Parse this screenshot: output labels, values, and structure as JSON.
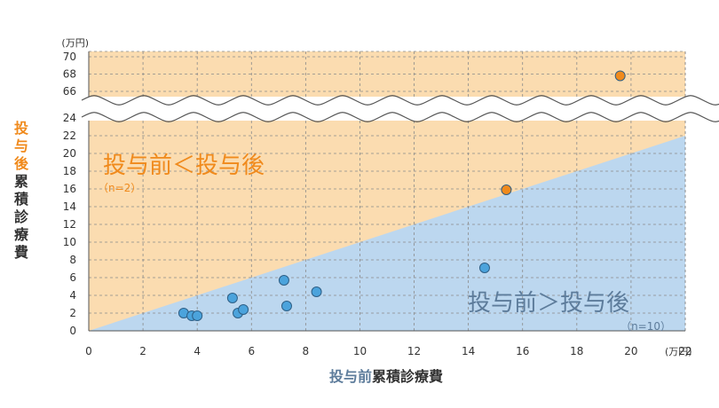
{
  "chart_data": {
    "type": "scatter",
    "x_unit": "(万円)",
    "y_unit": "(万円)",
    "x_ticks": [
      0,
      2,
      4,
      6,
      8,
      10,
      12,
      14,
      16,
      18,
      20,
      22
    ],
    "x_tick_labels": [
      "0",
      "2",
      "4",
      "6",
      "8",
      "10",
      "12",
      "14",
      "16",
      "18",
      "20",
      "22"
    ],
    "xlim": [
      0,
      22
    ],
    "y_ticks_lower": [
      0,
      2,
      4,
      6,
      8,
      10,
      12,
      14,
      16,
      18,
      20,
      22,
      24
    ],
    "y_ticks_upper": [
      66,
      68,
      70
    ],
    "y_axis_break": [
      24.5,
      65.5
    ],
    "ylim": [
      0,
      71
    ],
    "grid": true,
    "xlabel": {
      "highlight": "投与前",
      "rest": "累積診療費"
    },
    "ylabel": {
      "highlight": [
        "投",
        "与",
        "後"
      ],
      "rest": [
        "累",
        "積",
        "診",
        "療",
        "費"
      ]
    },
    "regions": {
      "upper": {
        "label": "投与前＜投与後",
        "count": "（n=2）",
        "color": "#fbdcb0"
      },
      "lower": {
        "label": "投与前＞投与後",
        "count": "（n=10）",
        "color": "#bcd7ef"
      }
    },
    "diagonal": {
      "from": [
        0,
        0
      ],
      "to": [
        22,
        22
      ]
    },
    "series": [
      {
        "group": "upper",
        "color": "#f08a1c",
        "points": [
          [
            15.4,
            15.9
          ],
          [
            19.6,
            67.8
          ]
        ]
      },
      {
        "group": "lower",
        "color": "#4ba3dc",
        "points": [
          [
            3.5,
            2.0
          ],
          [
            3.8,
            1.7
          ],
          [
            4.0,
            1.7
          ],
          [
            5.3,
            3.7
          ],
          [
            5.5,
            2.0
          ],
          [
            5.7,
            2.4
          ],
          [
            7.2,
            5.7
          ],
          [
            7.3,
            2.8
          ],
          [
            8.4,
            4.4
          ],
          [
            14.6,
            7.1
          ]
        ]
      }
    ]
  }
}
